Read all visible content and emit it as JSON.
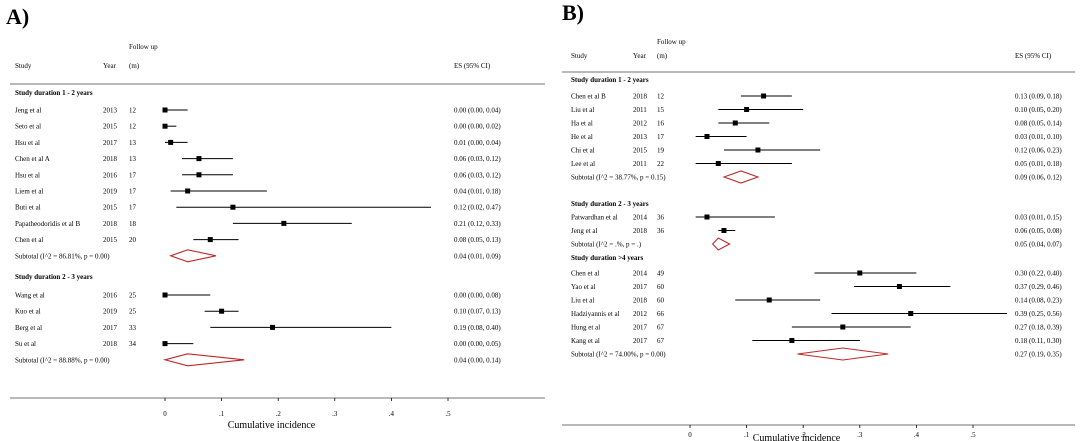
{
  "chart_data": [
    {
      "type": "forest",
      "panel_label": "A)",
      "columns": {
        "study": "Study",
        "year": "Year",
        "followup_line1": "Follow up",
        "followup_line2": "(m)",
        "es": "ES (95% CI)"
      },
      "xlabel": "Cumulative incidence",
      "xlim": [
        0,
        0.5
      ],
      "xticks": [
        {
          "value": 0,
          "label": "0"
        },
        {
          "value": 0.1,
          "label": ".1"
        },
        {
          "value": 0.2,
          "label": ".2"
        },
        {
          "value": 0.3,
          "label": ".3"
        },
        {
          "value": 0.4,
          "label": ".4"
        },
        {
          "value": 0.5,
          "label": ".5"
        }
      ],
      "groups": [
        {
          "title": "Study duration 1 - 2 years",
          "studies": [
            {
              "study": "Jeng et al",
              "year": "2013",
              "followup": "12",
              "es": 0.0,
              "lo": 0.0,
              "hi": 0.04,
              "ci_text": "0.00 (0.00, 0.04)"
            },
            {
              "study": "Seto et al",
              "year": "2015",
              "followup": "12",
              "es": 0.0,
              "lo": 0.0,
              "hi": 0.02,
              "ci_text": "0.00 (0.00, 0.02)"
            },
            {
              "study": "Hsu et al",
              "year": "2017",
              "followup": "13",
              "es": 0.01,
              "lo": 0.0,
              "hi": 0.04,
              "ci_text": "0.01 (0.00, 0.04)"
            },
            {
              "study": "Chen et al A",
              "year": "2018",
              "followup": "13",
              "es": 0.06,
              "lo": 0.03,
              "hi": 0.12,
              "ci_text": "0.06 (0.03, 0.12)"
            },
            {
              "study": "Hsu et al",
              "year": "2016",
              "followup": "17",
              "es": 0.06,
              "lo": 0.03,
              "hi": 0.12,
              "ci_text": "0.06 (0.03, 0.12)"
            },
            {
              "study": "Liem et al",
              "year": "2019",
              "followup": "17",
              "es": 0.04,
              "lo": 0.01,
              "hi": 0.18,
              "ci_text": "0.04 (0.01, 0.18)"
            },
            {
              "study": "Buti et al",
              "year": "2015",
              "followup": "17",
              "es": 0.12,
              "lo": 0.02,
              "hi": 0.47,
              "ci_text": "0.12 (0.02, 0.47)"
            },
            {
              "study": "Papatheodoridis et al B",
              "year": "2018",
              "followup": "18",
              "es": 0.21,
              "lo": 0.12,
              "hi": 0.33,
              "ci_text": "0.21 (0.12, 0.33)"
            },
            {
              "study": "Chen et al",
              "year": "2015",
              "followup": "20",
              "es": 0.08,
              "lo": 0.05,
              "hi": 0.13,
              "ci_text": "0.08 (0.05, 0.13)"
            }
          ],
          "subtotal": {
            "label": "Subtotal  (I^2 = 86.81%, p = 0.00)",
            "es": 0.04,
            "lo": 0.01,
            "hi": 0.09,
            "ci_text": "0.04 (0.01, 0.09)"
          }
        },
        {
          "title": "Study duration 2 - 3 years",
          "studies": [
            {
              "study": "Wang et al",
              "year": "2016",
              "followup": "25",
              "es": 0.0,
              "lo": 0.0,
              "hi": 0.08,
              "ci_text": "0.00 (0.00, 0.08)"
            },
            {
              "study": "Kuo et al",
              "year": "2019",
              "followup": "25",
              "es": 0.1,
              "lo": 0.07,
              "hi": 0.13,
              "ci_text": "0.10 (0.07, 0.13)"
            },
            {
              "study": "Berg et al",
              "year": "2017",
              "followup": "33",
              "es": 0.19,
              "lo": 0.08,
              "hi": 0.4,
              "ci_text": "0.19 (0.08, 0.40)"
            },
            {
              "study": "Su et al",
              "year": "2018",
              "followup": "34",
              "es": 0.0,
              "lo": 0.0,
              "hi": 0.05,
              "ci_text": "0.00 (0.00, 0.05)"
            }
          ],
          "subtotal": {
            "label": "Subtotal  (I^2 = 88.88%, p = 0.00)",
            "es": 0.04,
            "lo": 0.0,
            "hi": 0.14,
            "ci_text": "0.04 (0.00, 0.14)"
          }
        }
      ]
    },
    {
      "type": "forest",
      "panel_label": "B)",
      "columns": {
        "study": "Study",
        "year": "Year",
        "followup_line1": "Follow up",
        "followup_line2": "(m)",
        "es": "ES (95% CI)"
      },
      "xlabel": "Cumulative incidence",
      "xlim": [
        0,
        0.5
      ],
      "xticks": [
        {
          "value": 0,
          "label": "0"
        },
        {
          "value": 0.1,
          "label": ".1"
        },
        {
          "value": 0.2,
          "label": ".2"
        },
        {
          "value": 0.3,
          "label": ".3"
        },
        {
          "value": 0.4,
          "label": ".4"
        },
        {
          "value": 0.5,
          "label": ".5"
        }
      ],
      "groups": [
        {
          "title": "Study duration 1 - 2 years",
          "studies": [
            {
              "study": "Chen et al B",
              "year": "2018",
              "followup": "12",
              "es": 0.13,
              "lo": 0.09,
              "hi": 0.18,
              "ci_text": "0.13 (0.09, 0.18)"
            },
            {
              "study": "Liu et al",
              "year": "2011",
              "followup": "15",
              "es": 0.1,
              "lo": 0.05,
              "hi": 0.2,
              "ci_text": "0.10 (0.05, 0.20)"
            },
            {
              "study": "Ha et al",
              "year": "2012",
              "followup": "16",
              "es": 0.08,
              "lo": 0.05,
              "hi": 0.14,
              "ci_text": "0.08 (0.05, 0.14)"
            },
            {
              "study": "He et al",
              "year": "2013",
              "followup": "17",
              "es": 0.03,
              "lo": 0.01,
              "hi": 0.1,
              "ci_text": "0.03 (0.01, 0.10)"
            },
            {
              "study": "Chi et al",
              "year": "2015",
              "followup": "19",
              "es": 0.12,
              "lo": 0.06,
              "hi": 0.23,
              "ci_text": "0.12 (0.06, 0.23)"
            },
            {
              "study": "Lee et al",
              "year": "2011",
              "followup": "22",
              "es": 0.05,
              "lo": 0.01,
              "hi": 0.18,
              "ci_text": "0.05 (0.01, 0.18)"
            }
          ],
          "subtotal": {
            "label": "Subtotal  (I^2 = 38.77%, p = 0.15)",
            "es": 0.09,
            "lo": 0.06,
            "hi": 0.12,
            "ci_text": "0.09 (0.06, 0.12)"
          }
        },
        {
          "title": "Study duration 2 - 3 years",
          "studies": [
            {
              "study": "Patwardhan et al",
              "year": "2014",
              "followup": "36",
              "es": 0.03,
              "lo": 0.01,
              "hi": 0.15,
              "ci_text": "0.03 (0.01, 0.15)"
            },
            {
              "study": "Jeng et al",
              "year": "2018",
              "followup": "36",
              "es": 0.06,
              "lo": 0.05,
              "hi": 0.08,
              "ci_text": "0.06 (0.05, 0.08)"
            }
          ],
          "subtotal": {
            "label": "Subtotal  (I^2 = .%, p = .)",
            "es": 0.05,
            "lo": 0.04,
            "hi": 0.07,
            "ci_text": "0.05 (0.04, 0.07)"
          }
        },
        {
          "title": "Study duration >4 years",
          "studies": [
            {
              "study": "Chen et al",
              "year": "2014",
              "followup": "49",
              "es": 0.3,
              "lo": 0.22,
              "hi": 0.4,
              "ci_text": "0.30 (0.22, 0.40)"
            },
            {
              "study": "Yao et al",
              "year": "2017",
              "followup": "60",
              "es": 0.37,
              "lo": 0.29,
              "hi": 0.46,
              "ci_text": "0.37 (0.29, 0.46)"
            },
            {
              "study": "Liu et al",
              "year": "2018",
              "followup": "60",
              "es": 0.14,
              "lo": 0.08,
              "hi": 0.23,
              "ci_text": "0.14 (0.08, 0.23)"
            },
            {
              "study": "Hadziyannis et al",
              "year": "2012",
              "followup": "66",
              "es": 0.39,
              "lo": 0.25,
              "hi": 0.56,
              "ci_text": "0.39 (0.25, 0.56)"
            },
            {
              "study": "Hung et al",
              "year": "2017",
              "followup": "67",
              "es": 0.27,
              "lo": 0.18,
              "hi": 0.39,
              "ci_text": "0.27 (0.18, 0.39)"
            },
            {
              "study": "Kang et al",
              "year": "2017",
              "followup": "67",
              "es": 0.18,
              "lo": 0.11,
              "hi": 0.3,
              "ci_text": "0.18 (0.11, 0.30)"
            }
          ],
          "subtotal": {
            "label": "Subtotal  (I^2 = 74.00%, p = 0.00)",
            "es": 0.27,
            "lo": 0.19,
            "hi": 0.35,
            "ci_text": "0.27 (0.19, 0.35)"
          }
        }
      ]
    }
  ],
  "colors": {
    "diamond": "#c0282a",
    "ink": "#000000",
    "divider": "#444444"
  }
}
